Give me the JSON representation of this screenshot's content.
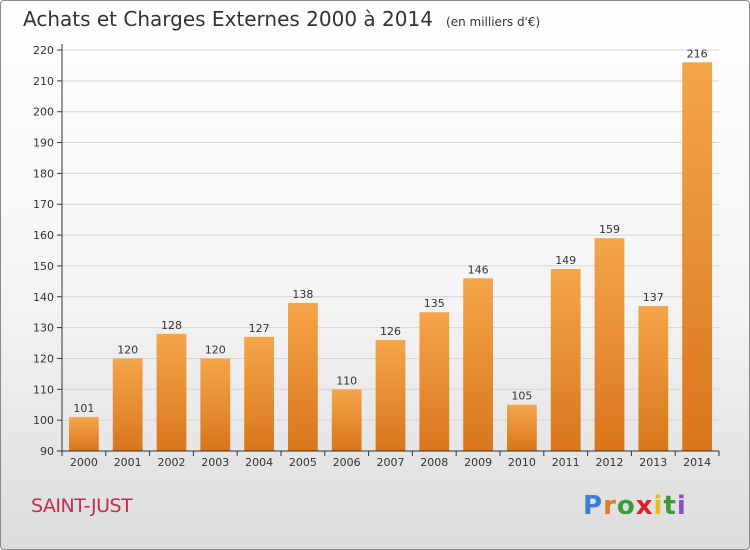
{
  "title": "Achats et Charges Externes 2000 à 2014",
  "unit": "(en milliers d'€)",
  "city": "SAINT-JUST",
  "logo": {
    "letters": [
      "P",
      "r",
      "o",
      "x",
      "i",
      "t",
      "i"
    ],
    "colors": [
      "#3a7fd0",
      "#e07a1e",
      "#3a9a3a",
      "#d8222a",
      "#e8b820",
      "#3a9a3a",
      "#8a50c0"
    ]
  },
  "colors": {
    "bar_light": "#f5a54a",
    "bar_dark": "#d9761c",
    "grid": "#d6d6d6",
    "axis": "#333333"
  },
  "chart_data": {
    "type": "bar",
    "title": "Achats et Charges Externes 2000 à 2014",
    "subtitle": "(en milliers d'€)",
    "categories": [
      "2000",
      "2001",
      "2002",
      "2003",
      "2004",
      "2005",
      "2006",
      "2007",
      "2008",
      "2009",
      "2010",
      "2011",
      "2012",
      "2013",
      "2014"
    ],
    "values": [
      101,
      120,
      128,
      120,
      127,
      138,
      110,
      126,
      135,
      146,
      105,
      149,
      159,
      137,
      216
    ],
    "ylim": [
      90,
      220
    ],
    "yticks": [
      90,
      100,
      110,
      120,
      130,
      140,
      150,
      160,
      170,
      180,
      190,
      200,
      210,
      220
    ],
    "grid": true,
    "xlabel": "",
    "ylabel": ""
  }
}
